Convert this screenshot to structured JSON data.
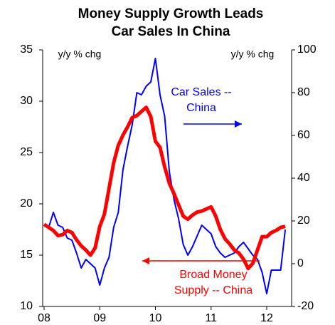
{
  "chart_data": {
    "type": "line",
    "title": [
      "Money Supply Growth Leads",
      "Car Sales In China"
    ],
    "y_label": "y/y % chg",
    "y2_label": "y/y % chg",
    "categories": [
      "08",
      null,
      null,
      null,
      null,
      null,
      null,
      null,
      null,
      null,
      null,
      null,
      "09",
      null,
      null,
      null,
      null,
      null,
      null,
      null,
      null,
      null,
      null,
      null,
      "10",
      null,
      null,
      null,
      null,
      null,
      null,
      null,
      null,
      null,
      null,
      null,
      "11",
      null,
      null,
      null,
      null,
      null,
      null,
      null,
      null,
      null,
      null,
      null,
      "12",
      null,
      null,
      null,
      null
    ],
    "series": [
      {
        "name": "Broad Money Supply -- China",
        "color": "#ff0000",
        "axis": "y",
        "values": [
          18.0,
          17.7,
          17.4,
          16.9,
          17.0,
          17.4,
          17.2,
          16.5,
          15.9,
          15.5,
          15.0,
          15.7,
          17.8,
          19.0,
          21.5,
          24.0,
          25.7,
          26.7,
          27.5,
          28.4,
          28.6,
          29.0,
          29.4,
          28.5,
          26.1,
          25.5,
          23.6,
          22.0,
          21.0,
          19.9,
          18.8,
          18.5,
          18.9,
          19.2,
          19.3,
          19.5,
          19.7,
          18.8,
          17.5,
          16.6,
          16.1,
          15.5,
          15.2,
          14.6,
          13.7,
          14.2,
          15.5,
          16.8,
          16.8,
          17.2,
          17.4,
          17.7,
          17.8
        ]
      },
      {
        "name": "Car Sales -- China",
        "color": "#0000ff",
        "axis": "y2",
        "values": [
          18,
          17,
          24,
          18,
          17,
          12,
          11,
          5,
          -2,
          2,
          0,
          -2,
          -10,
          -2,
          3,
          17,
          24,
          44,
          55,
          65,
          80,
          79,
          83,
          85,
          96,
          79,
          69,
          43,
          30,
          21,
          9,
          4,
          8,
          13,
          18,
          16,
          14,
          8,
          5,
          3,
          4,
          5,
          8,
          10,
          7,
          4,
          2,
          -4,
          -14,
          -3,
          -3,
          -3,
          16
        ]
      }
    ],
    "annotations": [
      {
        "lines": [
          "Car Sales --",
          "China"
        ],
        "color": "#0000ff",
        "arrow": "right"
      },
      {
        "lines": [
          "Broad Money",
          "Supply -- China"
        ],
        "color": "#ff0000",
        "arrow": "left"
      }
    ],
    "ylim": [
      10,
      35
    ],
    "yticks": [
      10,
      15,
      20,
      25,
      30,
      35
    ],
    "y2lim": [
      -20,
      100
    ],
    "y2ticks": [
      -20,
      0,
      20,
      40,
      60,
      80,
      100
    ]
  }
}
